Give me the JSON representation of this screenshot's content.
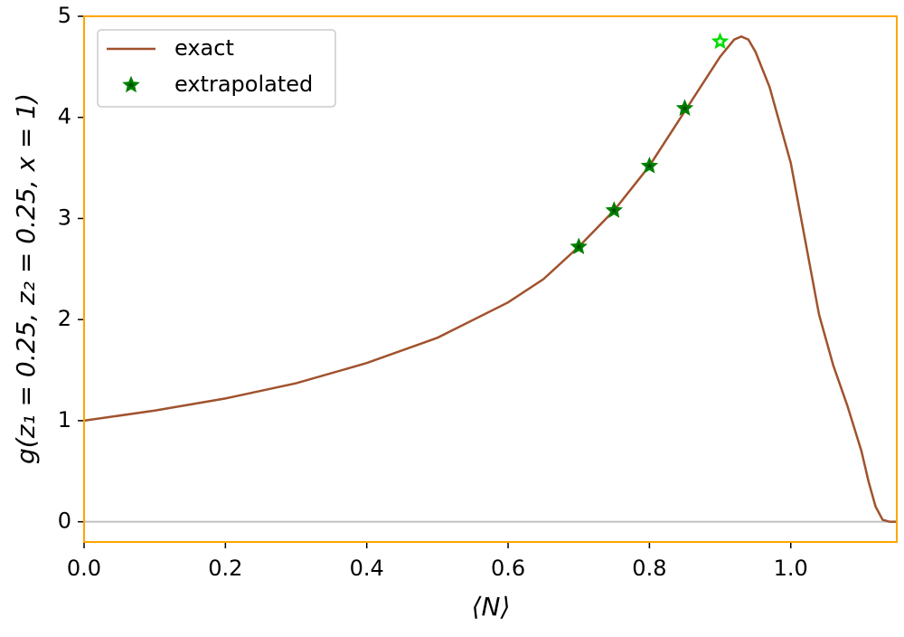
{
  "chart_data": {
    "type": "line",
    "xlabel": "⟨N⟩",
    "ylabel": "g(z₁ = 0.25, z₂ = 0.25, x = 1)",
    "xlim": [
      0,
      1.15
    ],
    "ylim": [
      -0.2,
      5
    ],
    "xticks": [
      {
        "value": 0,
        "label": "0.0"
      },
      {
        "value": 0.2,
        "label": "0.2"
      },
      {
        "value": 0.4,
        "label": "0.4"
      },
      {
        "value": 0.6,
        "label": "0.6"
      },
      {
        "value": 0.8,
        "label": "0.8"
      },
      {
        "value": 1,
        "label": "1.0"
      }
    ],
    "yticks": [
      0,
      1,
      2,
      3,
      4,
      5
    ],
    "hlines": [
      0
    ],
    "hline_color": "#c0c0c0",
    "frame_color": "#ffa500",
    "legend": "upper left",
    "series": [
      {
        "name": "exact",
        "type": "line",
        "color": "#a0522d",
        "x": [
          0,
          0.1,
          0.2,
          0.3,
          0.4,
          0.5,
          0.6,
          0.65,
          0.7,
          0.75,
          0.8,
          0.85,
          0.9,
          0.92,
          0.93,
          0.94,
          0.95,
          0.97,
          0.99,
          1.0,
          1.02,
          1.04,
          1.06,
          1.08,
          1.1,
          1.11,
          1.12,
          1.13,
          1.14,
          1.15
        ],
        "values": [
          1.0,
          1.1,
          1.22,
          1.37,
          1.57,
          1.82,
          2.17,
          2.4,
          2.72,
          3.08,
          3.52,
          4.06,
          4.6,
          4.77,
          4.8,
          4.77,
          4.65,
          4.3,
          3.8,
          3.55,
          2.8,
          2.05,
          1.55,
          1.15,
          0.7,
          0.4,
          0.15,
          0.02,
          0,
          0
        ]
      },
      {
        "name": "extrapolated",
        "type": "scatter",
        "color": "#008000",
        "x": [
          0.7,
          0.75,
          0.8,
          0.85,
          0.9
        ],
        "values": [
          2.72,
          3.08,
          3.52,
          4.09,
          4.75
        ],
        "edge_colors": [
          "#008000",
          "#008000",
          "#008000",
          "#008000",
          "#00dd00"
        ],
        "fill_colors": [
          "#004d00",
          "#004d00",
          "#004d00",
          "#004d00",
          "#ffffff"
        ]
      }
    ]
  }
}
